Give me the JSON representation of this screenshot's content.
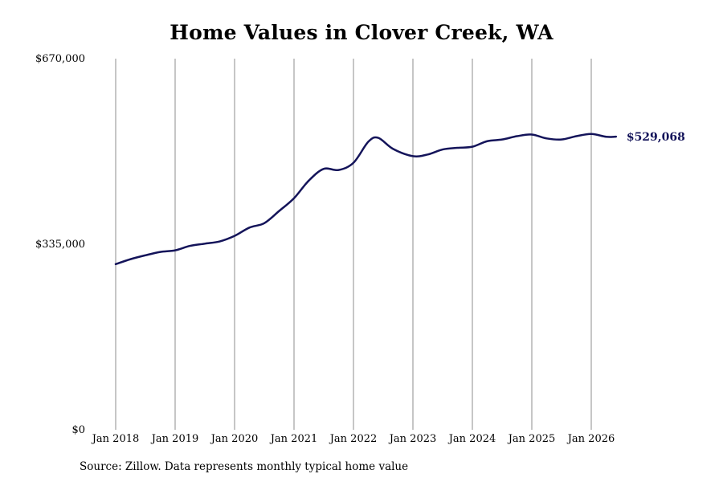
{
  "chart_data": {
    "type": "line",
    "title": "Home Values in Clover Creek, WA",
    "xlabel": "",
    "ylabel": "",
    "ylim": [
      0,
      670000
    ],
    "yticks": [
      0,
      335000,
      670000
    ],
    "ytick_labels": [
      "$0",
      "$335,000",
      "$670,000"
    ],
    "xlim": [
      "2018-01",
      "2026-08"
    ],
    "xticks": [
      "2018-01",
      "2019-01",
      "2020-01",
      "2021-01",
      "2022-01",
      "2023-01",
      "2024-01",
      "2025-01",
      "2026-01"
    ],
    "xtick_labels": [
      "Jan 2018",
      "Jan 2019",
      "Jan 2020",
      "Jan 2021",
      "Jan 2022",
      "Jan 2023",
      "Jan 2024",
      "Jan 2025",
      "Jan 2026"
    ],
    "grid": {
      "vertical": true,
      "horizontal": false
    },
    "series": [
      {
        "color": "#14145a",
        "end_label": "$529,068",
        "points": [
          {
            "x": "2018-01",
            "y": 299000
          },
          {
            "x": "2018-04",
            "y": 308000
          },
          {
            "x": "2018-07",
            "y": 315000
          },
          {
            "x": "2018-10",
            "y": 321000
          },
          {
            "x": "2019-01",
            "y": 324000
          },
          {
            "x": "2019-04",
            "y": 332000
          },
          {
            "x": "2019-07",
            "y": 336000
          },
          {
            "x": "2019-10",
            "y": 340000
          },
          {
            "x": "2020-01",
            "y": 350000
          },
          {
            "x": "2020-04",
            "y": 365000
          },
          {
            "x": "2020-07",
            "y": 373000
          },
          {
            "x": "2020-10",
            "y": 395000
          },
          {
            "x": "2021-01",
            "y": 418000
          },
          {
            "x": "2021-04",
            "y": 450000
          },
          {
            "x": "2021-07",
            "y": 471000
          },
          {
            "x": "2021-10",
            "y": 469000
          },
          {
            "x": "2022-01",
            "y": 482000
          },
          {
            "x": "2022-04",
            "y": 520000
          },
          {
            "x": "2022-06",
            "y": 527000
          },
          {
            "x": "2022-09",
            "y": 507000
          },
          {
            "x": "2023-01",
            "y": 494000
          },
          {
            "x": "2023-04",
            "y": 497000
          },
          {
            "x": "2023-07",
            "y": 506000
          },
          {
            "x": "2023-10",
            "y": 509000
          },
          {
            "x": "2024-01",
            "y": 511000
          },
          {
            "x": "2024-04",
            "y": 521000
          },
          {
            "x": "2024-07",
            "y": 524000
          },
          {
            "x": "2024-10",
            "y": 530000
          },
          {
            "x": "2025-01",
            "y": 533000
          },
          {
            "x": "2025-04",
            "y": 526000
          },
          {
            "x": "2025-07",
            "y": 524000
          },
          {
            "x": "2025-10",
            "y": 530000
          },
          {
            "x": "2026-01",
            "y": 534000
          },
          {
            "x": "2026-04",
            "y": 529000
          },
          {
            "x": "2026-06",
            "y": 529068
          }
        ]
      }
    ]
  },
  "footer": {
    "source": "Source: Zillow. Data represents monthly typical home value"
  }
}
